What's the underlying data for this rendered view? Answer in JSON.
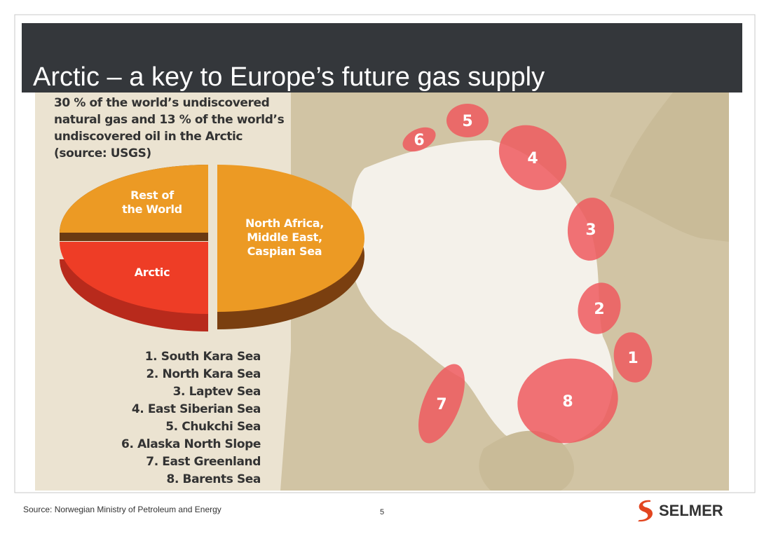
{
  "title": "Arctic – a key to Europe’s future gas supply",
  "infographic": {
    "caption": [
      "30 % of the world’s undiscovered",
      "natural gas and 13 % of the world’s",
      "undiscovered oil in the Arctic",
      "(source: USGS)"
    ],
    "pie_labels": {
      "rest_of_world": [
        "Rest of",
        "the World"
      ],
      "north_africa": [
        "North Africa,",
        "Middle East,",
        "Caspian Sea"
      ],
      "arctic": [
        "Arctic"
      ]
    },
    "regions": [
      {
        "marker": "1",
        "legend": "1. South Kara Sea"
      },
      {
        "marker": "2",
        "legend": "2. North Kara Sea"
      },
      {
        "marker": "3",
        "legend": "3. Laptev Sea"
      },
      {
        "marker": "4",
        "legend": "4. East Siberian Sea"
      },
      {
        "marker": "5",
        "legend": "5. Chukchi Sea"
      },
      {
        "marker": "6",
        "legend": "6. Alaska North Slope"
      },
      {
        "marker": "7",
        "legend": "7. East Greenland"
      },
      {
        "marker": "8",
        "legend": "8. Barents Sea"
      }
    ]
  },
  "footer": {
    "source": "Source: Norwegian Ministry of Petroleum and Energy",
    "page_number": "5",
    "logo": "SELMER"
  }
}
